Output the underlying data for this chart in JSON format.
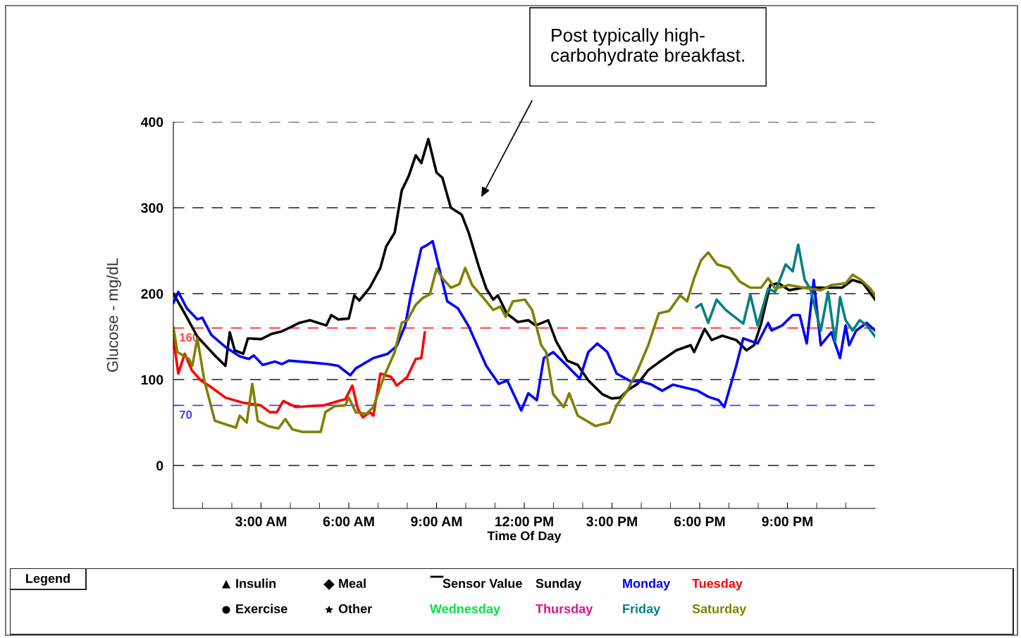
{
  "chart_data": {
    "type": "line",
    "xlabel": "Time Of Day",
    "ylabel": "Glucose - mg/dL",
    "annotations": [
      "Post typically high-\ncarbohydrate breakfast."
    ],
    "xlim": [
      0,
      24
    ],
    "ylim": [
      -50,
      400
    ],
    "xticks": [
      {
        "value": 1,
        "label": null
      },
      {
        "value": 2,
        "label": null
      },
      {
        "value": 3,
        "label": "3:00 AM"
      },
      {
        "value": 4,
        "label": null
      },
      {
        "value": 5,
        "label": null
      },
      {
        "value": 6,
        "label": "6:00 AM"
      },
      {
        "value": 7,
        "label": null
      },
      {
        "value": 8,
        "label": null
      },
      {
        "value": 9,
        "label": "9:00 AM"
      },
      {
        "value": 10,
        "label": null
      },
      {
        "value": 11,
        "label": null
      },
      {
        "value": 12,
        "label": "12:00 PM"
      },
      {
        "value": 13,
        "label": null
      },
      {
        "value": 14,
        "label": null
      },
      {
        "value": 15,
        "label": "3:00 PM"
      },
      {
        "value": 16,
        "label": null
      },
      {
        "value": 17,
        "label": null
      },
      {
        "value": 18,
        "label": "6:00 PM"
      },
      {
        "value": 19,
        "label": null
      },
      {
        "value": 20,
        "label": null
      },
      {
        "value": 21,
        "label": "9:00 PM"
      },
      {
        "value": 22,
        "label": null
      },
      {
        "value": 23,
        "label": null
      }
    ],
    "yticks": [
      0,
      100,
      200,
      300,
      400
    ],
    "grid": "y",
    "legend": "bottom",
    "legend_title": "Legend",
    "line_style": "solid",
    "ref_lines": [
      {
        "axis": "y",
        "value": 160,
        "label": "160",
        "color": "#ff4040",
        "line_style": "dashed"
      },
      {
        "axis": "y",
        "value": 70,
        "label": "70",
        "color": "#4040ff",
        "line_style": "dashed"
      }
    ],
    "series": [
      {
        "name": "Insulin",
        "type": "scatter",
        "marker": "triangle",
        "color": "#000000"
      },
      {
        "name": "Meal",
        "type": "scatter",
        "marker": "diamond",
        "color": "#000000"
      },
      {
        "name": "Sensor Value",
        "line_style": "solid",
        "color": "#000000"
      },
      {
        "name": "Sunday",
        "color": "#000000",
        "x": [
          0,
          0.39,
          0.82,
          1.42,
          1.78,
          1.93,
          2.1,
          2.39,
          2.55,
          3.0,
          3.35,
          3.7,
          3.95,
          4.31,
          4.67,
          5.23,
          5.4,
          5.64,
          6.0,
          6.19,
          6.36,
          6.72,
          7.08,
          7.28,
          7.57,
          7.81,
          8.05,
          8.29,
          8.48,
          8.72,
          9.0,
          9.2,
          9.49,
          9.86,
          10.1,
          10.46,
          10.7,
          10.94,
          11.1,
          11.4,
          11.78,
          12.14,
          12.39,
          12.82,
          13.1,
          13.47,
          13.83,
          14.19,
          14.67,
          14.99,
          15.28,
          15.59,
          15.88,
          16.24,
          16.6,
          17.2,
          17.69,
          17.81,
          18.17,
          18.41,
          18.77,
          19.25,
          19.6,
          19.86,
          20.1,
          20.41,
          20.7,
          21.06,
          21.54,
          22.14,
          22.87,
          23.23,
          23.59,
          24
        ],
        "values": [
          200,
          177,
          150,
          128,
          116,
          155,
          134,
          130,
          148,
          147,
          153,
          156,
          160,
          166,
          169,
          163,
          175,
          170,
          171,
          198,
          192,
          207,
          230,
          255,
          271,
          320,
          337,
          361,
          352,
          380,
          341,
          335,
          300,
          292,
          271,
          230,
          206,
          193,
          198,
          177,
          167,
          169,
          163,
          169,
          144,
          122,
          117,
          99,
          83,
          78,
          79,
          89,
          95,
          111,
          120,
          134,
          140,
          132,
          159,
          146,
          151,
          146,
          134,
          140,
          165,
          210,
          212,
          204,
          207,
          207,
          207,
          216,
          212,
          193
        ]
      },
      {
        "name": "Monday",
        "color": "#0000ff",
        "x": [
          0,
          0.17,
          0.46,
          0.82,
          0.99,
          1.3,
          1.78,
          2.27,
          2.58,
          2.75,
          3.06,
          3.47,
          3.71,
          3.95,
          4.67,
          5.28,
          5.64,
          6.05,
          6.24,
          6.84,
          7.33,
          7.64,
          7.93,
          8.12,
          8.48,
          8.65,
          8.87,
          9.06,
          9.37,
          9.73,
          10.1,
          10.7,
          11.13,
          11.42,
          11.9,
          12.14,
          12.43,
          12.67,
          12.99,
          13.35,
          13.9,
          14.19,
          14.5,
          14.84,
          15.16,
          15.64,
          16.0,
          16.36,
          16.72,
          17.08,
          17.45,
          17.93,
          18.29,
          18.65,
          18.84,
          19.25,
          19.49,
          19.98,
          20.34,
          20.46,
          20.82,
          21.18,
          21.42,
          21.66,
          21.9,
          22.14,
          22.5,
          22.8,
          22.99,
          23.11,
          23.35,
          23.71,
          24
        ],
        "values": [
          189,
          202,
          183,
          170,
          172,
          152,
          138,
          127,
          124,
          128,
          117,
          121,
          118,
          122,
          120,
          118,
          116,
          105,
          113,
          125,
          130,
          139,
          163,
          198,
          253,
          256,
          261,
          234,
          191,
          183,
          162,
          116,
          95,
          99,
          64,
          84,
          76,
          125,
          132,
          120,
          101,
          132,
          142,
          132,
          107,
          98,
          98,
          94,
          87,
          94,
          91,
          87,
          80,
          76,
          68,
          116,
          148,
          142,
          166,
          157,
          163,
          175,
          175,
          142,
          216,
          140,
          155,
          125,
          163,
          140,
          157,
          166,
          157
        ]
      },
      {
        "name": "Tuesday",
        "color": "#ff0000",
        "x": [
          0,
          0.17,
          0.39,
          0.63,
          0.94,
          1.3,
          1.78,
          2.39,
          2.99,
          3.3,
          3.54,
          3.76,
          4.19,
          4.67,
          5.16,
          5.64,
          5.88,
          6.12,
          6.31,
          6.48,
          6.72,
          6.84,
          7.08,
          7.45,
          7.64,
          8.0,
          8.29,
          8.48,
          8.6
        ],
        "values": [
          148,
          107,
          130,
          111,
          99,
          91,
          79,
          73,
          70,
          62,
          62,
          75,
          68,
          69,
          70,
          75,
          77,
          93,
          66,
          56,
          62,
          58,
          107,
          103,
          93,
          103,
          124,
          125,
          155
        ]
      },
      {
        "name": "Exercise",
        "type": "scatter",
        "marker": "circle",
        "color": "#000000"
      },
      {
        "name": "Other",
        "type": "scatter",
        "marker": "star",
        "color": "#000000"
      },
      {
        "name": "Wednesday",
        "color": "#00e040"
      },
      {
        "name": "Thursday",
        "color": "#e0108a"
      },
      {
        "name": "Friday",
        "color": "#008080",
        "x": [
          17.88,
          18.05,
          18.29,
          18.58,
          18.89,
          19.49,
          19.73,
          19.98,
          20.34,
          20.58,
          20.94,
          21.18,
          21.37,
          21.59,
          21.78,
          22.14,
          22.39,
          22.63,
          22.8,
          22.99,
          23.23,
          23.47,
          23.71,
          24
        ],
        "values": [
          184,
          188,
          166,
          193,
          181,
          165,
          199,
          163,
          206,
          202,
          234,
          226,
          257,
          216,
          206,
          157,
          202,
          144,
          196,
          169,
          157,
          169,
          163,
          150
        ]
      },
      {
        "name": "Saturday",
        "color": "#808000",
        "x": [
          0,
          0.14,
          0.34,
          0.53,
          0.65,
          0.82,
          1.06,
          1.42,
          1.78,
          2.14,
          2.27,
          2.51,
          2.7,
          2.89,
          3.23,
          3.59,
          3.83,
          4.07,
          4.43,
          5.04,
          5.2,
          5.52,
          5.88,
          6.0,
          6.24,
          6.6,
          6.84,
          7.2,
          7.57,
          7.81,
          8.0,
          8.29,
          8.53,
          8.77,
          9.0,
          9.2,
          9.49,
          9.78,
          9.98,
          10.22,
          10.53,
          10.94,
          11.18,
          11.37,
          11.61,
          12.02,
          12.27,
          12.58,
          12.75,
          12.99,
          13.35,
          13.54,
          13.83,
          14.43,
          14.67,
          14.92,
          15.16,
          15.52,
          15.88,
          16.24,
          16.6,
          16.96,
          17.33,
          17.57,
          17.81,
          18.05,
          18.29,
          18.6,
          19.01,
          19.37,
          19.73,
          20.1,
          20.34,
          20.58,
          21.06,
          21.54,
          22.14,
          22.5,
          22.99,
          23.23,
          23.52,
          23.83,
          24
        ],
        "values": [
          161,
          132,
          128,
          124,
          116,
          148,
          99,
          52,
          48,
          44,
          58,
          50,
          95,
          52,
          46,
          43,
          54,
          42,
          39,
          39,
          62,
          69,
          70,
          79,
          62,
          60,
          68,
          103,
          132,
          166,
          169,
          187,
          195,
          199,
          229,
          218,
          207,
          211,
          230,
          210,
          198,
          181,
          185,
          173,
          191,
          193,
          181,
          140,
          132,
          83,
          68,
          84,
          58,
          46,
          48,
          50,
          70,
          87,
          111,
          140,
          177,
          180,
          198,
          191,
          218,
          239,
          248,
          234,
          230,
          214,
          207,
          207,
          218,
          206,
          210,
          207,
          204,
          210,
          212,
          222,
          216,
          206,
          198
        ]
      }
    ]
  }
}
